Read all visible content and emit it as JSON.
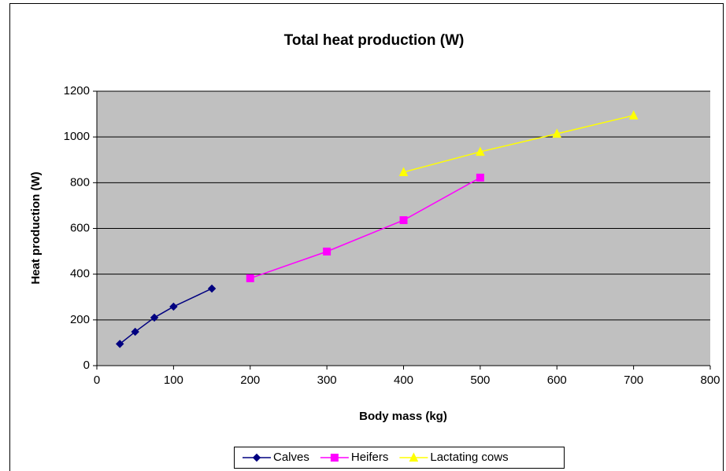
{
  "chart_data": {
    "type": "line",
    "title": "Total heat production (W)",
    "x_label": "Body mass (kg)",
    "y_label": "Heat production (W)",
    "xlim": [
      0,
      800
    ],
    "xticks": [
      0,
      100,
      200,
      300,
      400,
      500,
      600,
      700,
      800
    ],
    "ylim": [
      0,
      1200
    ],
    "yticks": [
      0,
      200,
      400,
      600,
      800,
      1000,
      1200
    ],
    "grid": true,
    "legend": "bottom",
    "series": [
      {
        "name": "Calves",
        "color": "#000080",
        "marker": "diamond",
        "x": [
          30,
          50,
          75,
          100,
          150
        ],
        "values": [
          95,
          148,
          210,
          258,
          337
        ]
      },
      {
        "name": "Heifers",
        "color": "#ff00ff",
        "marker": "square",
        "x": [
          200,
          300,
          400,
          500
        ],
        "values": [
          382,
          499,
          636,
          822
        ]
      },
      {
        "name": "Lactating cows",
        "color": "#ffff00",
        "marker": "triangle",
        "x": [
          400,
          500,
          600,
          700
        ],
        "values": [
          846,
          935,
          1014,
          1094
        ]
      }
    ]
  }
}
